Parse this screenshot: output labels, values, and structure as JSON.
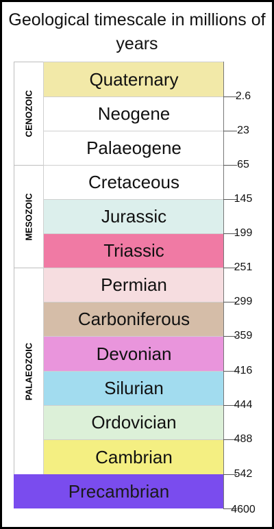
{
  "title": "Geological timescale in millions of years",
  "eras": [
    {
      "name": "CENOZOIC"
    },
    {
      "name": "MESOZOIC"
    },
    {
      "name": "PALAEOZOIC"
    }
  ],
  "periods": [
    {
      "name": "Quaternary",
      "color": "#f2e9a8"
    },
    {
      "name": "Neogene",
      "color": "#ffffff"
    },
    {
      "name": "Palaeogene",
      "color": "#ffffff"
    },
    {
      "name": "Cretaceous",
      "color": "#ffffff"
    },
    {
      "name": "Jurassic",
      "color": "#dcefec"
    },
    {
      "name": "Triassic",
      "color": "#f07aa4"
    },
    {
      "name": "Permian",
      "color": "#f6dde0"
    },
    {
      "name": "Carboniferous",
      "color": "#d5bda8"
    },
    {
      "name": "Devonian",
      "color": "#e995dc"
    },
    {
      "name": "Silurian",
      "color": "#a2dcef"
    },
    {
      "name": "Ordovician",
      "color": "#dcf0d8"
    },
    {
      "name": "Cambrian",
      "color": "#f4ef82"
    },
    {
      "name": "Precambrian",
      "color": "#7a4cee"
    }
  ],
  "boundaries": [
    "2.6",
    "23",
    "65",
    "145",
    "199",
    "251",
    "299",
    "359",
    "416",
    "444",
    "488",
    "542",
    "4600"
  ]
}
